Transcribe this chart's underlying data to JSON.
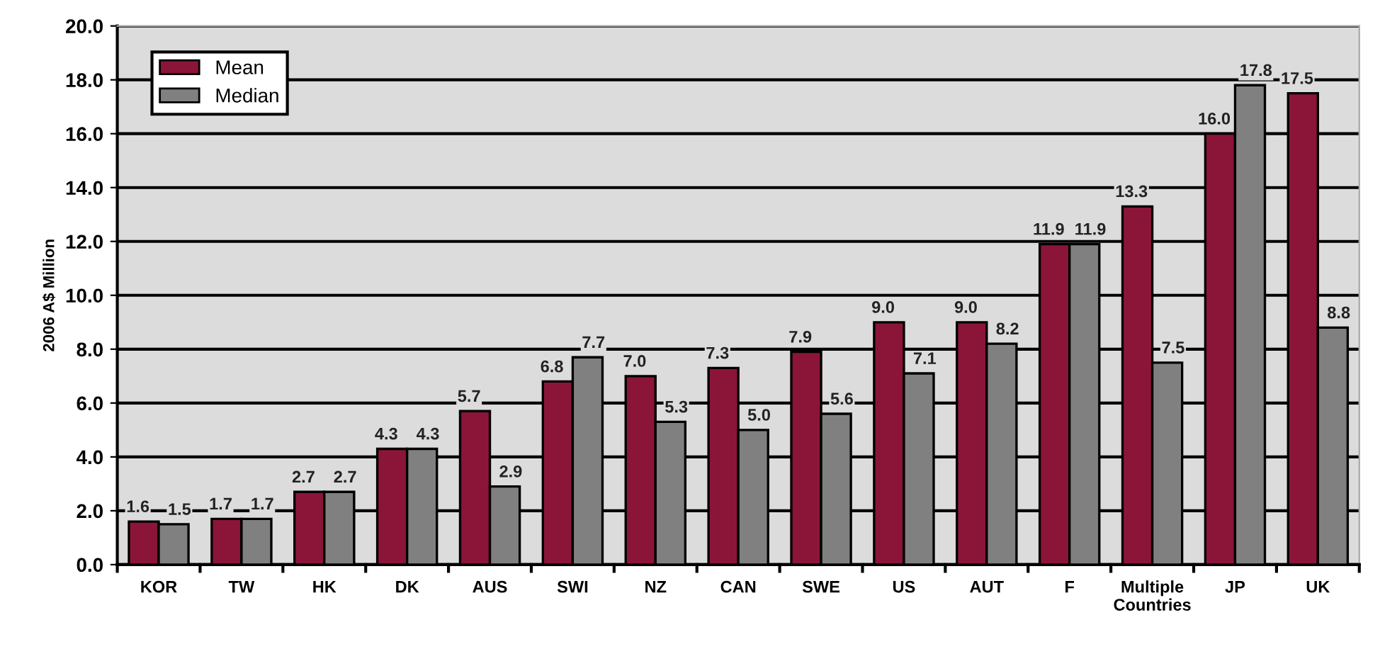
{
  "chart_data": {
    "type": "bar",
    "ylabel": "2006 A$ Million",
    "categories": [
      "KOR",
      "TW",
      "HK",
      "DK",
      "AUS",
      "SWI",
      "NZ",
      "CAN",
      "SWE",
      "US",
      "AUT",
      "F",
      "Multiple\nCountries",
      "JP",
      "UK"
    ],
    "series": [
      {
        "name": "Mean",
        "color": "#8b1538",
        "values": [
          1.6,
          1.7,
          2.7,
          4.3,
          5.7,
          6.8,
          7.0,
          7.3,
          7.9,
          9.0,
          9.0,
          11.9,
          13.3,
          16.0,
          17.5
        ],
        "value_labels": [
          "1.6",
          "1.7",
          "2.7",
          "4.3",
          "5.7",
          "6.8",
          "7.0",
          "7.3",
          "7.9",
          "9.0",
          "9.0",
          "11.9",
          "13.3",
          "16.0",
          "17.5"
        ]
      },
      {
        "name": "Median",
        "color": "#808080",
        "values": [
          1.5,
          1.7,
          2.7,
          4.3,
          2.9,
          7.7,
          5.3,
          5.0,
          5.6,
          7.1,
          8.2,
          11.9,
          7.5,
          17.8,
          8.8
        ],
        "value_labels": [
          "1.5",
          "1.7",
          "2.7",
          "4.3",
          "2.9",
          "7.7",
          "5.3",
          "5.0",
          "5.6",
          "7.1",
          "8.2",
          "11.9",
          "7.5",
          "17.8",
          "8.8"
        ]
      }
    ],
    "ylim": [
      0,
      20
    ],
    "yticks": [
      {
        "value": 0,
        "label": "0.0"
      },
      {
        "value": 2,
        "label": "2.0"
      },
      {
        "value": 4,
        "label": "4.0"
      },
      {
        "value": 6,
        "label": "6.0"
      },
      {
        "value": 8,
        "label": "8.0"
      },
      {
        "value": 10,
        "label": "10.0"
      },
      {
        "value": 12,
        "label": "12.0"
      },
      {
        "value": 14,
        "label": "14.0"
      },
      {
        "value": 16,
        "label": "16.0"
      },
      {
        "value": 18,
        "label": "18.0"
      },
      {
        "value": 20,
        "label": "20.0"
      }
    ],
    "grid": "y",
    "legend": "top left"
  }
}
